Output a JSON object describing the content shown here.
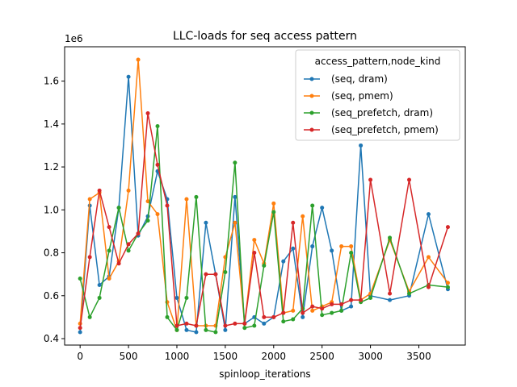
{
  "chart_data": {
    "type": "line",
    "title": "LLC-loads for seq access pattern",
    "xlabel": "spinloop_iterations",
    "ylabel": "",
    "y_offset_label": "1e6",
    "xlim": [
      -160,
      3980
    ],
    "ylim": [
      0.37,
      1.76
    ],
    "x_ticks": [
      0,
      500,
      1000,
      1500,
      2000,
      2500,
      3000,
      3500
    ],
    "y_ticks": [
      0.4,
      0.6,
      0.8,
      1.0,
      1.2,
      1.4,
      1.6
    ],
    "y_tick_labels": [
      "0.4",
      "0.6",
      "0.8",
      "1.0",
      "1.2",
      "1.4",
      "1.6"
    ],
    "grid": false,
    "legend": {
      "title": "access_pattern,node_kind",
      "placement": "top-right"
    },
    "series": [
      {
        "name": "(seq, dram)",
        "color": "#1f77b4",
        "points": [
          [
            0,
            0.43
          ],
          [
            100,
            1.02
          ],
          [
            200,
            0.65
          ],
          [
            300,
            0.69
          ],
          [
            400,
            1.01
          ],
          [
            500,
            1.62
          ],
          [
            600,
            0.88
          ],
          [
            700,
            0.97
          ],
          [
            800,
            1.18
          ],
          [
            900,
            1.05
          ],
          [
            1000,
            0.59
          ],
          [
            1100,
            0.44
          ],
          [
            1200,
            0.43
          ],
          [
            1300,
            0.94
          ],
          [
            1400,
            0.7
          ],
          [
            1500,
            0.44
          ],
          [
            1600,
            1.06
          ],
          [
            1700,
            0.47
          ],
          [
            1800,
            0.5
          ],
          [
            1900,
            0.47
          ],
          [
            2000,
            0.5
          ],
          [
            2100,
            0.76
          ],
          [
            2200,
            0.82
          ],
          [
            2300,
            0.5
          ],
          [
            2400,
            0.83
          ],
          [
            2500,
            1.01
          ],
          [
            2600,
            0.81
          ],
          [
            2700,
            0.53
          ],
          [
            2800,
            0.55
          ],
          [
            2900,
            1.3
          ],
          [
            3000,
            0.6
          ],
          [
            3200,
            0.58
          ],
          [
            3400,
            0.6
          ],
          [
            3600,
            0.98
          ],
          [
            3800,
            0.63
          ]
        ]
      },
      {
        "name": "(seq, pmem)",
        "color": "#ff7f0e",
        "points": [
          [
            0,
            0.47
          ],
          [
            100,
            1.05
          ],
          [
            200,
            1.08
          ],
          [
            300,
            0.68
          ],
          [
            400,
            0.76
          ],
          [
            500,
            1.09
          ],
          [
            600,
            1.7
          ],
          [
            700,
            1.04
          ],
          [
            800,
            0.98
          ],
          [
            900,
            0.57
          ],
          [
            1000,
            0.44
          ],
          [
            1100,
            1.05
          ],
          [
            1200,
            0.46
          ],
          [
            1300,
            0.46
          ],
          [
            1400,
            0.46
          ],
          [
            1500,
            0.78
          ],
          [
            1600,
            0.94
          ],
          [
            1700,
            0.47
          ],
          [
            1800,
            0.86
          ],
          [
            1900,
            0.75
          ],
          [
            2000,
            1.03
          ],
          [
            2100,
            0.52
          ],
          [
            2200,
            0.53
          ],
          [
            2300,
            0.97
          ],
          [
            2400,
            0.53
          ],
          [
            2500,
            0.55
          ],
          [
            2600,
            0.57
          ],
          [
            2700,
            0.83
          ],
          [
            2800,
            0.83
          ],
          [
            2900,
            0.58
          ],
          [
            3000,
            0.61
          ],
          [
            3200,
            0.86
          ],
          [
            3400,
            0.62
          ],
          [
            3600,
            0.78
          ],
          [
            3800,
            0.66
          ]
        ]
      },
      {
        "name": "(seq_prefetch, dram)",
        "color": "#2ca02c",
        "points": [
          [
            0,
            0.68
          ],
          [
            100,
            0.5
          ],
          [
            200,
            0.59
          ],
          [
            300,
            0.81
          ],
          [
            400,
            1.01
          ],
          [
            500,
            0.81
          ],
          [
            600,
            0.89
          ],
          [
            700,
            0.95
          ],
          [
            800,
            1.39
          ],
          [
            900,
            0.5
          ],
          [
            1000,
            0.44
          ],
          [
            1100,
            0.59
          ],
          [
            1200,
            1.06
          ],
          [
            1300,
            0.44
          ],
          [
            1400,
            0.43
          ],
          [
            1500,
            0.71
          ],
          [
            1600,
            1.22
          ],
          [
            1700,
            0.45
          ],
          [
            1800,
            0.46
          ],
          [
            1900,
            0.74
          ],
          [
            2000,
            0.99
          ],
          [
            2100,
            0.48
          ],
          [
            2200,
            0.49
          ],
          [
            2300,
            0.54
          ],
          [
            2400,
            1.02
          ],
          [
            2500,
            0.51
          ],
          [
            2600,
            0.52
          ],
          [
            2700,
            0.53
          ],
          [
            2800,
            0.8
          ],
          [
            2900,
            0.57
          ],
          [
            3000,
            0.59
          ],
          [
            3200,
            0.87
          ],
          [
            3400,
            0.61
          ],
          [
            3600,
            0.65
          ],
          [
            3800,
            0.64
          ]
        ]
      },
      {
        "name": "(seq_prefetch, pmem)",
        "color": "#d62728",
        "points": [
          [
            0,
            0.45
          ],
          [
            100,
            0.78
          ],
          [
            200,
            1.09
          ],
          [
            300,
            0.92
          ],
          [
            400,
            0.75
          ],
          [
            500,
            0.84
          ],
          [
            600,
            0.89
          ],
          [
            700,
            1.45
          ],
          [
            800,
            1.21
          ],
          [
            900,
            1.02
          ],
          [
            1000,
            0.46
          ],
          [
            1100,
            0.47
          ],
          [
            1200,
            0.46
          ],
          [
            1300,
            0.7
          ],
          [
            1400,
            0.7
          ],
          [
            1500,
            0.46
          ],
          [
            1600,
            0.47
          ],
          [
            1700,
            0.47
          ],
          [
            1800,
            0.8
          ],
          [
            1900,
            0.5
          ],
          [
            2000,
            0.5
          ],
          [
            2100,
            0.52
          ],
          [
            2200,
            0.94
          ],
          [
            2300,
            0.52
          ],
          [
            2400,
            0.55
          ],
          [
            2500,
            0.54
          ],
          [
            2600,
            0.56
          ],
          [
            2700,
            0.56
          ],
          [
            2800,
            0.58
          ],
          [
            2900,
            0.58
          ],
          [
            3000,
            1.14
          ],
          [
            3200,
            0.61
          ],
          [
            3400,
            1.14
          ],
          [
            3600,
            0.64
          ],
          [
            3800,
            0.92
          ]
        ]
      }
    ]
  }
}
